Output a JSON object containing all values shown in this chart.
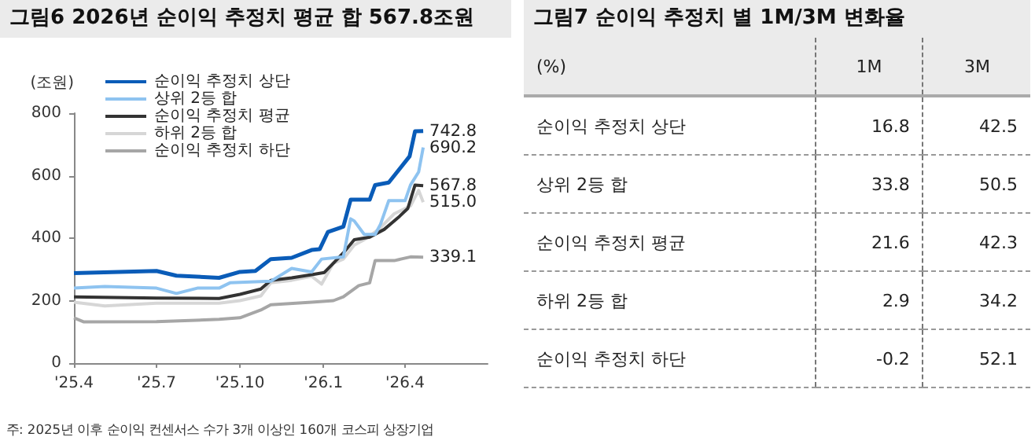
{
  "chart_data": [
    {
      "type": "line",
      "title": "그림6 2026년 순이익 추정치 평균 합 567.8조원",
      "ylabel": "(조원)",
      "xlim": [
        "2025-04-01",
        "2026-07-01"
      ],
      "xticks": [
        {
          "value": "2025-04-01",
          "label": "'25.4"
        },
        {
          "value": "2025-07-01",
          "label": "'25.7"
        },
        {
          "value": "2025-10-01",
          "label": "'25.10"
        },
        {
          "value": "2026-01-01",
          "label": "'26.1"
        },
        {
          "value": "2026-04-01",
          "label": "'26.4"
        }
      ],
      "ylim": [
        0,
        800
      ],
      "yticks": [
        0,
        200,
        400,
        600,
        800
      ],
      "grid": false,
      "legend": "top left",
      "marker": "none",
      "line_style": "solid",
      "series": [
        {
          "name": "순이익 추정치 상단",
          "color": "#0a5cb8",
          "x": [
            "2025-04-01",
            "2025-07-01",
            "2025-07-23",
            "2025-09-08",
            "2025-10-01",
            "2025-10-18",
            "2025-11-04",
            "2025-11-27",
            "2025-12-19",
            "2025-12-28",
            "2026-01-06",
            "2026-01-23",
            "2026-01-31",
            "2026-02-21",
            "2026-02-27",
            "2026-03-14",
            "2026-04-06",
            "2026-04-12",
            "2026-04-21"
          ],
          "values": [
            288,
            295,
            280,
            273,
            292,
            295,
            333,
            337,
            362,
            365,
            420,
            437,
            523,
            523,
            570,
            578,
            662,
            742,
            742.8
          ]
        },
        {
          "name": "상위 2등 합",
          "color": "#8ec3f0",
          "x": [
            "2025-04-01",
            "2025-05-05",
            "2025-07-01",
            "2025-07-23",
            "2025-08-15",
            "2025-09-08",
            "2025-09-20",
            "2025-11-04",
            "2025-11-27",
            "2025-12-19",
            "2025-12-30",
            "2026-01-23",
            "2026-01-31",
            "2026-02-04",
            "2026-02-15",
            "2026-02-27",
            "2026-03-05",
            "2026-03-14",
            "2026-04-01",
            "2026-04-07",
            "2026-04-16",
            "2026-04-21"
          ],
          "values": [
            240,
            245,
            240,
            223,
            240,
            240,
            257,
            262,
            303,
            292,
            333,
            340,
            462,
            455,
            412,
            412,
            445,
            520,
            520,
            570,
            612,
            690.2
          ]
        },
        {
          "name": "순이익 추정치 평균",
          "color": "#333333",
          "x": [
            "2025-04-01",
            "2025-07-01",
            "2025-09-08",
            "2025-10-01",
            "2025-10-24",
            "2025-11-04",
            "2025-11-27",
            "2025-12-19",
            "2026-01-02",
            "2026-01-12",
            "2026-01-23",
            "2026-02-04",
            "2026-02-21",
            "2026-03-09",
            "2026-03-26",
            "2026-04-04",
            "2026-04-12",
            "2026-04-21"
          ],
          "values": [
            212,
            208,
            207,
            220,
            237,
            265,
            273,
            283,
            290,
            320,
            353,
            395,
            403,
            428,
            470,
            495,
            570,
            567.8
          ]
        },
        {
          "name": "하위 2등 합",
          "color": "#d6d6d6",
          "x": [
            "2025-04-01",
            "2025-05-05",
            "2025-07-01",
            "2025-09-08",
            "2025-10-01",
            "2025-10-24",
            "2025-11-04",
            "2025-11-27",
            "2025-12-19",
            "2025-12-30",
            "2026-01-12",
            "2026-01-23",
            "2026-02-04",
            "2026-02-15",
            "2026-03-03",
            "2026-03-20",
            "2026-04-07",
            "2026-04-16",
            "2026-04-21"
          ],
          "values": [
            195,
            183,
            192,
            192,
            200,
            215,
            257,
            265,
            278,
            253,
            320,
            333,
            378,
            395,
            428,
            478,
            503,
            553,
            515
          ]
        },
        {
          "name": "순이익 추정치 하단",
          "color": "#a6a6a6",
          "x": [
            "2025-04-01",
            "2025-04-12",
            "2025-07-01",
            "2025-09-08",
            "2025-10-01",
            "2025-10-24",
            "2025-11-04",
            "2025-12-19",
            "2026-01-12",
            "2026-01-23",
            "2026-02-09",
            "2026-02-21",
            "2026-02-27",
            "2026-03-20",
            "2026-04-07",
            "2026-04-21"
          ],
          "values": [
            145,
            132,
            133,
            140,
            145,
            170,
            187,
            195,
            200,
            212,
            248,
            257,
            328,
            328,
            340,
            339.1
          ]
        }
      ],
      "annotations": [
        {
          "text": "742.8",
          "x": "2026-04-21",
          "y": 742.8
        },
        {
          "text": "690.2",
          "x": "2026-04-21",
          "y": 690.2
        },
        {
          "text": "567.8",
          "x": "2026-04-21",
          "y": 567.8
        },
        {
          "text": "515.0",
          "x": "2026-04-21",
          "y": 515
        },
        {
          "text": "339.1",
          "x": "2026-04-21",
          "y": 339.1
        },
        "주: 2025년 이후 순이익 컨센서스 수가 3개 이상인 160개 코스피 상장기업"
      ]
    },
    {
      "type": "other",
      "title": "그림7 순이익 추정치 별 1M/3M 변화율",
      "ylabel": "(%)",
      "data_labels": true,
      "categories": [
        "순이익 추정치 상단",
        "상위 2등 합",
        "순이익 추정치 평균",
        "하위 2등 합",
        "순이익 추정치 하단"
      ],
      "series": [
        {
          "name": "1M",
          "values": [
            16.8,
            33.8,
            21.6,
            2.9,
            -0.2
          ]
        },
        {
          "name": "3M",
          "values": [
            42.5,
            50.5,
            42.3,
            34.2,
            52.1
          ]
        }
      ]
    }
  ]
}
